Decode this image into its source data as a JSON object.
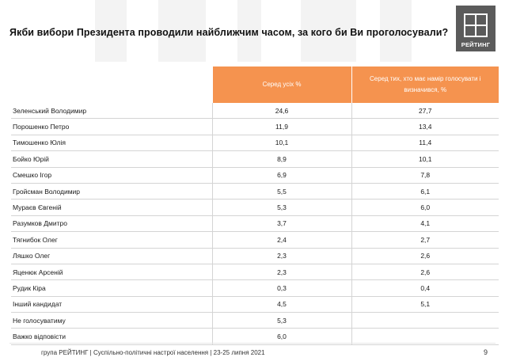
{
  "title": "Якби вибори Президента проводили найближчим часом, за кого би Ви проголосували?",
  "logo_text": "РЕЙТИНГ",
  "table": {
    "headers": [
      "Серед усіх %",
      "Серед тих, хто має намір голосувати і визначився, %"
    ],
    "rows": [
      {
        "name": "Зеленський Володимир",
        "all": "24,6",
        "decided": "27,7"
      },
      {
        "name": "Порошенко Петро",
        "all": "11,9",
        "decided": "13,4"
      },
      {
        "name": "Тимошенко Юлія",
        "all": "10,1",
        "decided": "11,4"
      },
      {
        "name": "Бойко Юрій",
        "all": "8,9",
        "decided": "10,1"
      },
      {
        "name": "Смешко Ігор",
        "all": "6,9",
        "decided": "7,8"
      },
      {
        "name": "Гройсман Володимир",
        "all": "5,5",
        "decided": "6,1"
      },
      {
        "name": "Мураєв Євгеній",
        "all": "5,3",
        "decided": "6,0"
      },
      {
        "name": "Разумков Дмитро",
        "all": "3,7",
        "decided": "4,1"
      },
      {
        "name": "Тягнибок Олег",
        "all": "2,4",
        "decided": "2,7"
      },
      {
        "name": "Ляшко Олег",
        "all": "2,3",
        "decided": "2,6"
      },
      {
        "name": "Яценюк Арсеній",
        "all": "2,3",
        "decided": "2,6"
      },
      {
        "name": "Рудик Кіра",
        "all": "0,3",
        "decided": "0,4"
      },
      {
        "name": "Інший кандидат",
        "all": "4,5",
        "decided": "5,1"
      },
      {
        "name": "Не голосуватиму",
        "all": "5,3",
        "decided": ""
      },
      {
        "name": "Важко відповісти",
        "all": "6,0",
        "decided": ""
      }
    ]
  },
  "footer": {
    "text": "група РЕЙТИНГ | Суспільно-політичні настрої населення  | 23-25 липня 2021",
    "page": "9"
  },
  "colors": {
    "header_bg": "#f5934f",
    "logo_bg": "#5b5b5b",
    "border": "#d4d4d4"
  }
}
